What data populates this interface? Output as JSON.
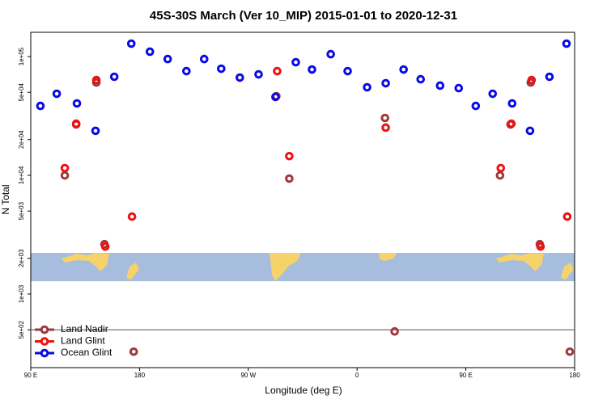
{
  "chart_data": {
    "type": "scatter",
    "title": "45S-30S March (Ver 10_MIP)   2015-01-01 to 2020-12-31",
    "x_label": "Longitude (deg E)",
    "y_label": "N Total",
    "log_y": true,
    "legend": "bottomleft",
    "reference_line": 500,
    "xlim": [
      90,
      540
    ],
    "ylim": [
      240,
      160000
    ],
    "xticks": [
      {
        "value": 90,
        "label": "90 E"
      },
      180,
      {
        "value": 270,
        "label": "90 W"
      },
      {
        "value": 360,
        "label": "0"
      },
      {
        "value": 450,
        "label": "90 E"
      },
      {
        "value": 540,
        "label": "180"
      }
    ],
    "yticks": [
      {
        "value": 500,
        "label": "5e+02"
      },
      {
        "value": 1000,
        "label": "1e+03"
      },
      {
        "value": 2000,
        "label": "2e+03"
      },
      {
        "value": 5000,
        "label": "5e+03"
      },
      {
        "value": 10000,
        "label": "1e+04"
      },
      {
        "value": 20000,
        "label": "2e+04"
      },
      {
        "value": 50000,
        "label": "5e+04"
      },
      {
        "value": 100000,
        "label": "1e+05"
      }
    ],
    "series": [
      {
        "name": "Land Nadir",
        "color": "#a0383c",
        "x": [
          118.2,
          127.6,
          144.3,
          151.0,
          175.2,
          293.2,
          303.9,
          383.1,
          391.1,
          478.3,
          487.0,
          503.7,
          511.2,
          536.0
        ],
        "values": [
          9980,
          26800,
          60500,
          2630,
          327,
          46400,
          9380,
          30400,
          484,
          9980,
          26800,
          60500,
          2630,
          327
        ]
      },
      {
        "name": "Land Glint",
        "color": "#ee1111",
        "x": [
          118.2,
          127.6,
          144.3,
          151.7,
          173.8,
          293.9,
          303.9,
          383.7,
          478.9,
          487.7,
          504.4,
          511.8,
          533.9
        ],
        "values": [
          11500,
          27200,
          63400,
          2510,
          4490,
          75400,
          14500,
          25200,
          11500,
          27200,
          63400,
          2510,
          4490
        ]
      },
      {
        "name": "Ocean Glint",
        "color": "#0a0ae6",
        "x": [
          98.0,
          111.5,
          128.2,
          143.6,
          159.1,
          173.2,
          188.6,
          203.3,
          218.8,
          233.5,
          247.6,
          263.0,
          278.5,
          292.5,
          309.3,
          322.7,
          338.2,
          352.2,
          368.3,
          383.7,
          398.5,
          412.6,
          428.7,
          444.1,
          458.2,
          472.2,
          488.3,
          503.1,
          519.2,
          533.3
        ],
        "values": [
          38400,
          48600,
          40300,
          23700,
          67600,
          128500,
          109900,
          95300,
          75400,
          95300,
          79000,
          66500,
          70800,
          45700,
          89600,
          77800,
          104700,
          75400,
          55100,
          59600,
          77800,
          64400,
          56900,
          54200,
          38400,
          48600,
          40300,
          23700,
          67600,
          128500
        ]
      }
    ]
  }
}
